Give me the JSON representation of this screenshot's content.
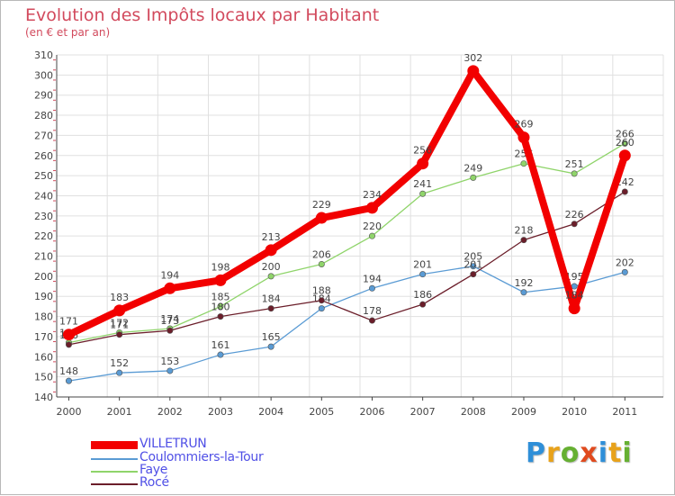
{
  "colors": {
    "title": "#d24a5d",
    "axis": "#444444",
    "grid": "#e0e0e0",
    "legend_text": "#5050e6"
  },
  "logo": {
    "text": "Proxiti",
    "letters": [
      {
        "ch": "P",
        "color": "#2f8fd8"
      },
      {
        "ch": "r",
        "color": "#e8a21a"
      },
      {
        "ch": "o",
        "color": "#66b032"
      },
      {
        "ch": "x",
        "color": "#e04a1e"
      },
      {
        "ch": "i",
        "color": "#2f8fd8"
      },
      {
        "ch": "t",
        "color": "#e8a21a"
      },
      {
        "ch": "i",
        "color": "#66b032"
      }
    ]
  },
  "chart_data": {
    "type": "line",
    "title": "Evolution des Impôts locaux par Habitant",
    "subtitle": "(en € et par an)",
    "xlabel": "",
    "ylabel": "",
    "x": [
      "2000",
      "2001",
      "2002",
      "2003",
      "2004",
      "2005",
      "2006",
      "2007",
      "2008",
      "2009",
      "2010",
      "2011"
    ],
    "ylim": [
      140,
      310
    ],
    "yticks": [
      140,
      150,
      160,
      170,
      180,
      190,
      200,
      210,
      220,
      230,
      240,
      250,
      260,
      270,
      280,
      290,
      300,
      310
    ],
    "grid": true,
    "legend_position": "bottom-left",
    "series": [
      {
        "name": "Coulommiers-la-Tour",
        "color": "#5a9bd4",
        "values": [
          148,
          152,
          153,
          161,
          165,
          184,
          194,
          201,
          205,
          192,
          195,
          202
        ]
      },
      {
        "name": "Faye",
        "color": "#8fd46a",
        "values": [
          167,
          172,
          174,
          185,
          200,
          206,
          220,
          241,
          249,
          256,
          251,
          266
        ]
      },
      {
        "name": "Rocé",
        "color": "#6b1e2a",
        "values": [
          166,
          171,
          173,
          180,
          184,
          188,
          178,
          186,
          201,
          218,
          226,
          242
        ]
      },
      {
        "name": "VILLETRUN",
        "color": "#f20000",
        "values": [
          171,
          183,
          194,
          198,
          213,
          229,
          234,
          256,
          302,
          269,
          184,
          260
        ]
      }
    ],
    "legend_order": [
      "VILLETRUN",
      "Coulommiers-la-Tour",
      "Faye",
      "Rocé"
    ]
  }
}
